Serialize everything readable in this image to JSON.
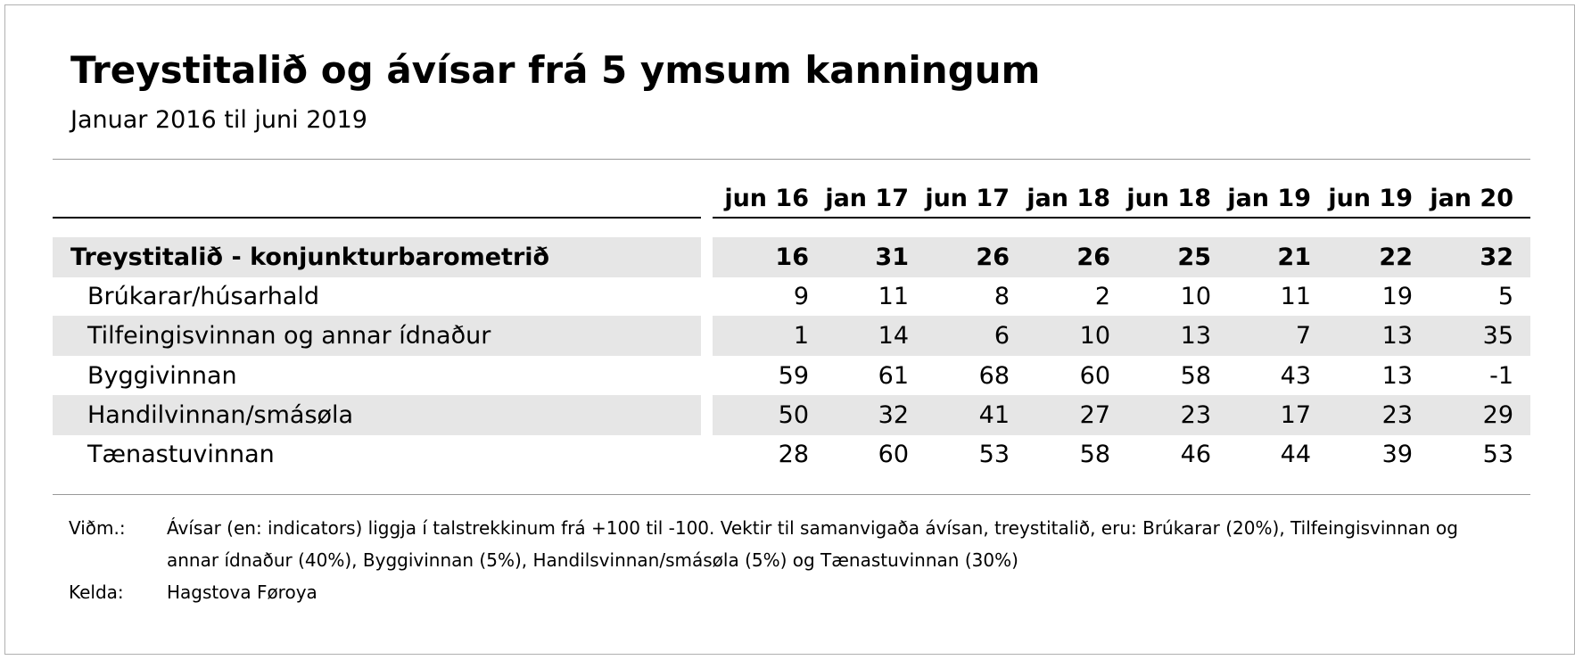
{
  "header": {
    "title": "Treystitalið og ávísar frá 5 ymsum kanningum",
    "subtitle": "Januar 2016 til juni 2019"
  },
  "table": {
    "columns": [
      "jun 16",
      "jan 17",
      "jun 17",
      "jan 18",
      "jun 18",
      "jan 19",
      "jun 19",
      "jan 20"
    ],
    "rows": [
      {
        "label": "Treystitalið - konjunkturbarometrið",
        "values": [
          16,
          31,
          26,
          26,
          25,
          21,
          22,
          32
        ]
      },
      {
        "label": "Brúkarar/húsarhald",
        "values": [
          9,
          11,
          8,
          2,
          10,
          11,
          19,
          5
        ]
      },
      {
        "label": "Tilfeingisvinnan og annar ídnaður",
        "values": [
          1,
          14,
          6,
          10,
          13,
          7,
          13,
          35
        ]
      },
      {
        "label": "Byggivinnan",
        "values": [
          59,
          61,
          68,
          60,
          58,
          43,
          13,
          -1
        ]
      },
      {
        "label": "Handilvinnan/smásøla",
        "values": [
          50,
          32,
          41,
          27,
          23,
          17,
          23,
          29
        ]
      },
      {
        "label": "Tænastuvinnan",
        "values": [
          28,
          60,
          53,
          58,
          46,
          44,
          39,
          53
        ]
      }
    ]
  },
  "notes": [
    {
      "label": "Viðm.:",
      "text": "Ávísar (en: indicators) liggja í talstrekkinum frá +100 til -100. Vektir til samanvigaða ávísan, treystitalið, eru: Brúkarar (20%), Tilfeingisvinnan og annar ídnaður (40%), Byggivinnan (5%), Handilsvinnan/smásøla (5%) og Tænastuvinnan (30%)"
    },
    {
      "label": "Kelda:",
      "text": "Hagstova Føroya"
    }
  ]
}
